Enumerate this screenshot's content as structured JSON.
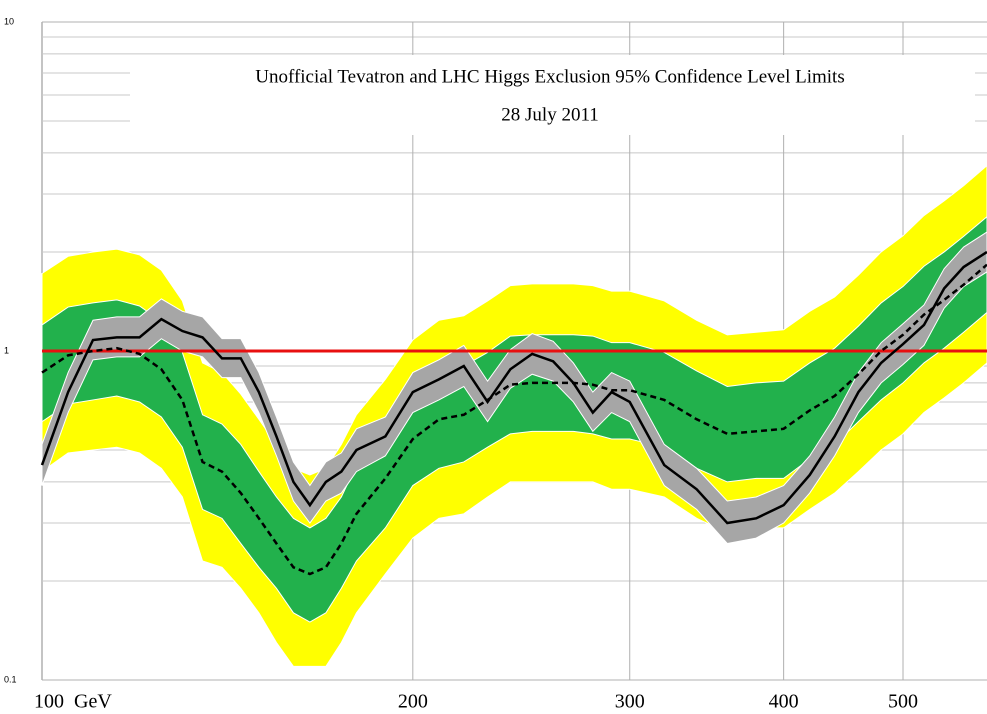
{
  "chart_data": {
    "type": "band-line",
    "title": "Unofficial Tevatron and LHC Higgs Exclusion 95% Confidence Level Limits",
    "subtitle": "28 July 2011",
    "x": [
      100,
      105,
      110,
      115,
      120,
      125,
      130,
      135,
      140,
      145,
      150,
      155,
      160,
      165,
      170,
      175,
      180,
      190,
      200,
      210,
      220,
      230,
      240,
      250,
      260,
      270,
      280,
      290,
      300,
      320,
      340,
      360,
      380,
      400,
      420,
      440,
      460,
      480,
      500,
      520,
      540,
      560,
      585
    ],
    "xlim": [
      100,
      585
    ],
    "xlog": true,
    "xticks": [
      {
        "value": 100,
        "label": "100  GeV"
      },
      200,
      300,
      400,
      500
    ],
    "ylim": [
      0.1,
      10
    ],
    "ylog": true,
    "yticks": [
      0.1,
      1,
      10
    ],
    "yminor": [
      0.2,
      0.3,
      0.4,
      0.5,
      0.6,
      0.7,
      0.8,
      0.9,
      2,
      3,
      4,
      5,
      6,
      7,
      8,
      9
    ],
    "grid": true,
    "bands": [
      {
        "color": "#ffff00",
        "high": [
          1.72,
          1.94,
          2.0,
          2.04,
          1.96,
          1.76,
          1.42,
          0.92,
          0.86,
          0.74,
          0.62,
          0.52,
          0.44,
          0.42,
          0.44,
          0.52,
          0.64,
          0.82,
          1.08,
          1.24,
          1.28,
          1.42,
          1.58,
          1.6,
          1.6,
          1.6,
          1.58,
          1.52,
          1.52,
          1.42,
          1.24,
          1.12,
          1.14,
          1.16,
          1.32,
          1.46,
          1.7,
          2.0,
          2.24,
          2.58,
          2.86,
          3.18,
          3.66
        ],
        "low": [
          0.43,
          0.49,
          0.5,
          0.51,
          0.49,
          0.44,
          0.36,
          0.23,
          0.22,
          0.19,
          0.16,
          0.13,
          0.11,
          0.11,
          0.11,
          0.13,
          0.16,
          0.21,
          0.27,
          0.31,
          0.32,
          0.36,
          0.4,
          0.4,
          0.4,
          0.4,
          0.4,
          0.38,
          0.38,
          0.36,
          0.31,
          0.28,
          0.29,
          0.29,
          0.33,
          0.37,
          0.43,
          0.5,
          0.56,
          0.65,
          0.72,
          0.8,
          0.92
        ]
      },
      {
        "color": "#22b14c",
        "high": [
          1.2,
          1.36,
          1.4,
          1.43,
          1.37,
          1.23,
          0.99,
          0.64,
          0.6,
          0.52,
          0.43,
          0.36,
          0.31,
          0.29,
          0.31,
          0.36,
          0.45,
          0.57,
          0.76,
          0.87,
          0.9,
          0.99,
          1.11,
          1.12,
          1.12,
          1.12,
          1.11,
          1.06,
          1.06,
          0.99,
          0.87,
          0.78,
          0.8,
          0.81,
          0.92,
          1.02,
          1.19,
          1.4,
          1.57,
          1.81,
          2.0,
          2.23,
          2.56
        ],
        "low": [
          0.61,
          0.69,
          0.71,
          0.73,
          0.7,
          0.63,
          0.51,
          0.33,
          0.31,
          0.26,
          0.22,
          0.19,
          0.16,
          0.15,
          0.16,
          0.19,
          0.23,
          0.29,
          0.39,
          0.44,
          0.46,
          0.51,
          0.56,
          0.57,
          0.57,
          0.57,
          0.56,
          0.54,
          0.54,
          0.51,
          0.44,
          0.4,
          0.41,
          0.41,
          0.47,
          0.52,
          0.61,
          0.71,
          0.8,
          0.92,
          1.02,
          1.14,
          1.31
        ]
      },
      {
        "color": "#a6a6a6",
        "high": [
          0.52,
          0.86,
          1.24,
          1.27,
          1.27,
          1.44,
          1.32,
          1.27,
          1.09,
          1.09,
          0.86,
          0.63,
          0.46,
          0.39,
          0.46,
          0.49,
          0.58,
          0.63,
          0.86,
          0.94,
          1.04,
          0.81,
          1.01,
          1.13,
          1.07,
          0.92,
          0.75,
          0.86,
          0.81,
          0.52,
          0.44,
          0.35,
          0.36,
          0.39,
          0.48,
          0.63,
          0.86,
          1.06,
          1.21,
          1.38,
          1.78,
          2.07,
          2.3
        ],
        "low": [
          0.39,
          0.65,
          0.94,
          0.96,
          0.96,
          1.09,
          1.0,
          0.96,
          0.83,
          0.83,
          0.65,
          0.48,
          0.35,
          0.3,
          0.35,
          0.37,
          0.43,
          0.48,
          0.65,
          0.71,
          0.78,
          0.61,
          0.77,
          0.85,
          0.81,
          0.7,
          0.57,
          0.65,
          0.61,
          0.39,
          0.33,
          0.26,
          0.27,
          0.3,
          0.37,
          0.48,
          0.65,
          0.8,
          0.91,
          1.04,
          1.35,
          1.57,
          1.74
        ]
      }
    ],
    "series": [
      {
        "color": "#000000",
        "dash": true,
        "values": [
          0.86,
          0.97,
          1.0,
          1.02,
          0.98,
          0.88,
          0.71,
          0.46,
          0.43,
          0.37,
          0.31,
          0.26,
          0.22,
          0.21,
          0.22,
          0.26,
          0.32,
          0.41,
          0.54,
          0.62,
          0.64,
          0.71,
          0.79,
          0.8,
          0.8,
          0.8,
          0.79,
          0.76,
          0.76,
          0.71,
          0.62,
          0.56,
          0.57,
          0.58,
          0.66,
          0.73,
          0.85,
          1.0,
          1.12,
          1.29,
          1.43,
          1.59,
          1.83
        ]
      },
      {
        "color": "#000000",
        "dash": false,
        "values": [
          0.45,
          0.75,
          1.08,
          1.1,
          1.1,
          1.25,
          1.15,
          1.1,
          0.95,
          0.95,
          0.75,
          0.55,
          0.4,
          0.34,
          0.4,
          0.43,
          0.5,
          0.55,
          0.75,
          0.82,
          0.9,
          0.7,
          0.88,
          0.98,
          0.93,
          0.8,
          0.65,
          0.75,
          0.7,
          0.45,
          0.38,
          0.3,
          0.31,
          0.34,
          0.42,
          0.55,
          0.75,
          0.92,
          1.05,
          1.2,
          1.55,
          1.8,
          2.0
        ]
      }
    ],
    "reference_line": {
      "value": 1,
      "color": "#e81010"
    }
  }
}
